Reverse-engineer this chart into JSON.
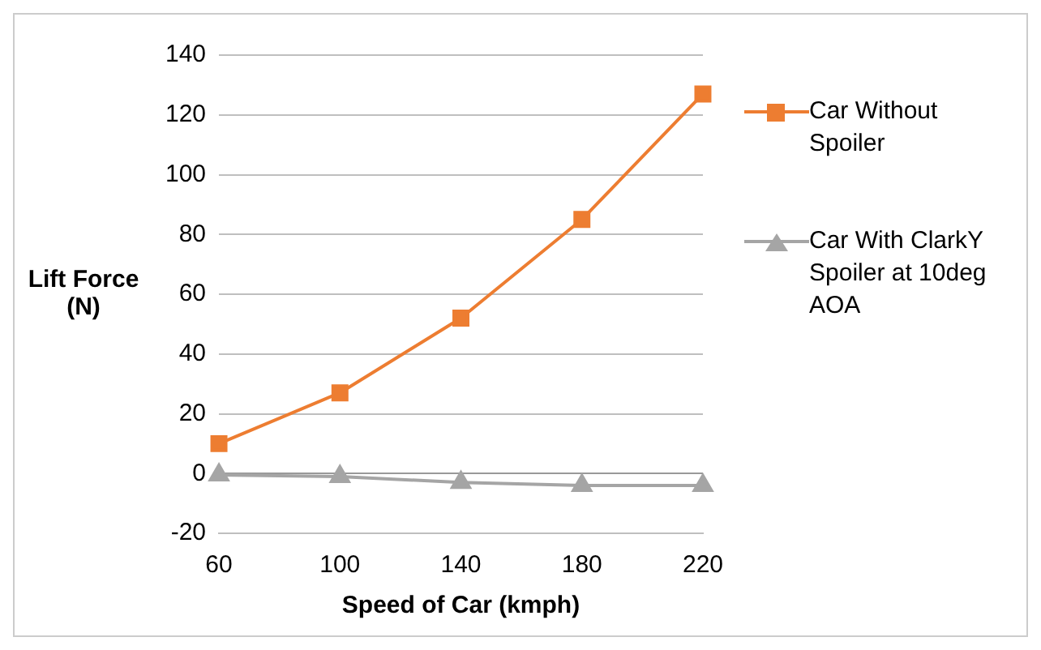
{
  "chart_data": {
    "type": "line",
    "xlabel": "Speed of Car (kmph)",
    "ylabel": "Lift Force (N)",
    "categories": [
      "60",
      "100",
      "140",
      "180",
      "220"
    ],
    "series": [
      {
        "name": "Car Without Spoiler",
        "color": "#ed7d31",
        "marker": "square",
        "values": [
          10,
          27,
          52,
          85,
          127
        ]
      },
      {
        "name": "Car With ClarkY Spoiler at 10deg AOA",
        "color": "#a5a5a5",
        "marker": "triangle",
        "values": [
          -0.5,
          -1,
          -3,
          -4,
          -4
        ]
      }
    ],
    "ylim": [
      -20,
      140
    ],
    "yticks": [
      -20,
      0,
      20,
      40,
      60,
      80,
      100,
      120,
      140
    ],
    "grid": "y",
    "legend": "right"
  }
}
